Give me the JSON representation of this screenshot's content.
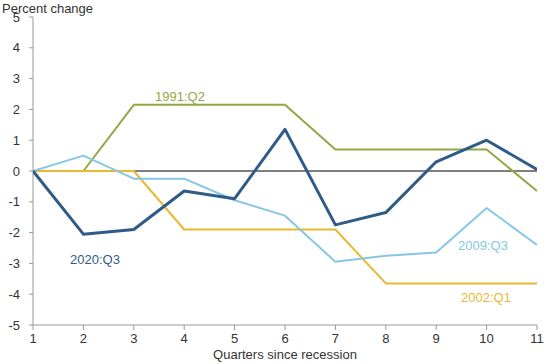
{
  "chart_data": {
    "type": "line",
    "y_label": "Percent change",
    "x_label": "Quarters since recession",
    "x": [
      1,
      2,
      3,
      4,
      5,
      6,
      7,
      8,
      9,
      10,
      11
    ],
    "xlim": [
      1,
      11
    ],
    "xticks": [
      1,
      2,
      3,
      4,
      5,
      6,
      7,
      8,
      9,
      10,
      11
    ],
    "ylim": [
      -5,
      5
    ],
    "yticks": [
      -5,
      -4,
      -3,
      -2,
      -1,
      0,
      1,
      2,
      3,
      4,
      5
    ],
    "grid": false,
    "series": [
      {
        "name": "1991:Q2",
        "color": "#8fa944",
        "values": [
          0,
          0,
          2.15,
          2.15,
          2.15,
          2.15,
          0.7,
          0.7,
          0.7,
          0.7,
          -0.65
        ]
      },
      {
        "name": "2002:Q1",
        "color": "#ebb733",
        "values": [
          0,
          0,
          0,
          -1.9,
          -1.9,
          -1.9,
          -1.9,
          -3.65,
          -3.65,
          -3.65,
          -3.65
        ]
      },
      {
        "name": "2009:Q3",
        "color": "#85c8e3",
        "values": [
          0,
          0.5,
          -0.25,
          -0.25,
          -0.95,
          -1.45,
          -2.95,
          -2.75,
          -2.65,
          -1.2,
          -2.4
        ]
      },
      {
        "name": "2020:Q3",
        "color": "#2f5b88",
        "values": [
          0,
          -2.05,
          -1.9,
          -0.65,
          -0.9,
          1.35,
          -1.75,
          -1.35,
          0.3,
          1.0,
          0.05
        ]
      }
    ]
  }
}
